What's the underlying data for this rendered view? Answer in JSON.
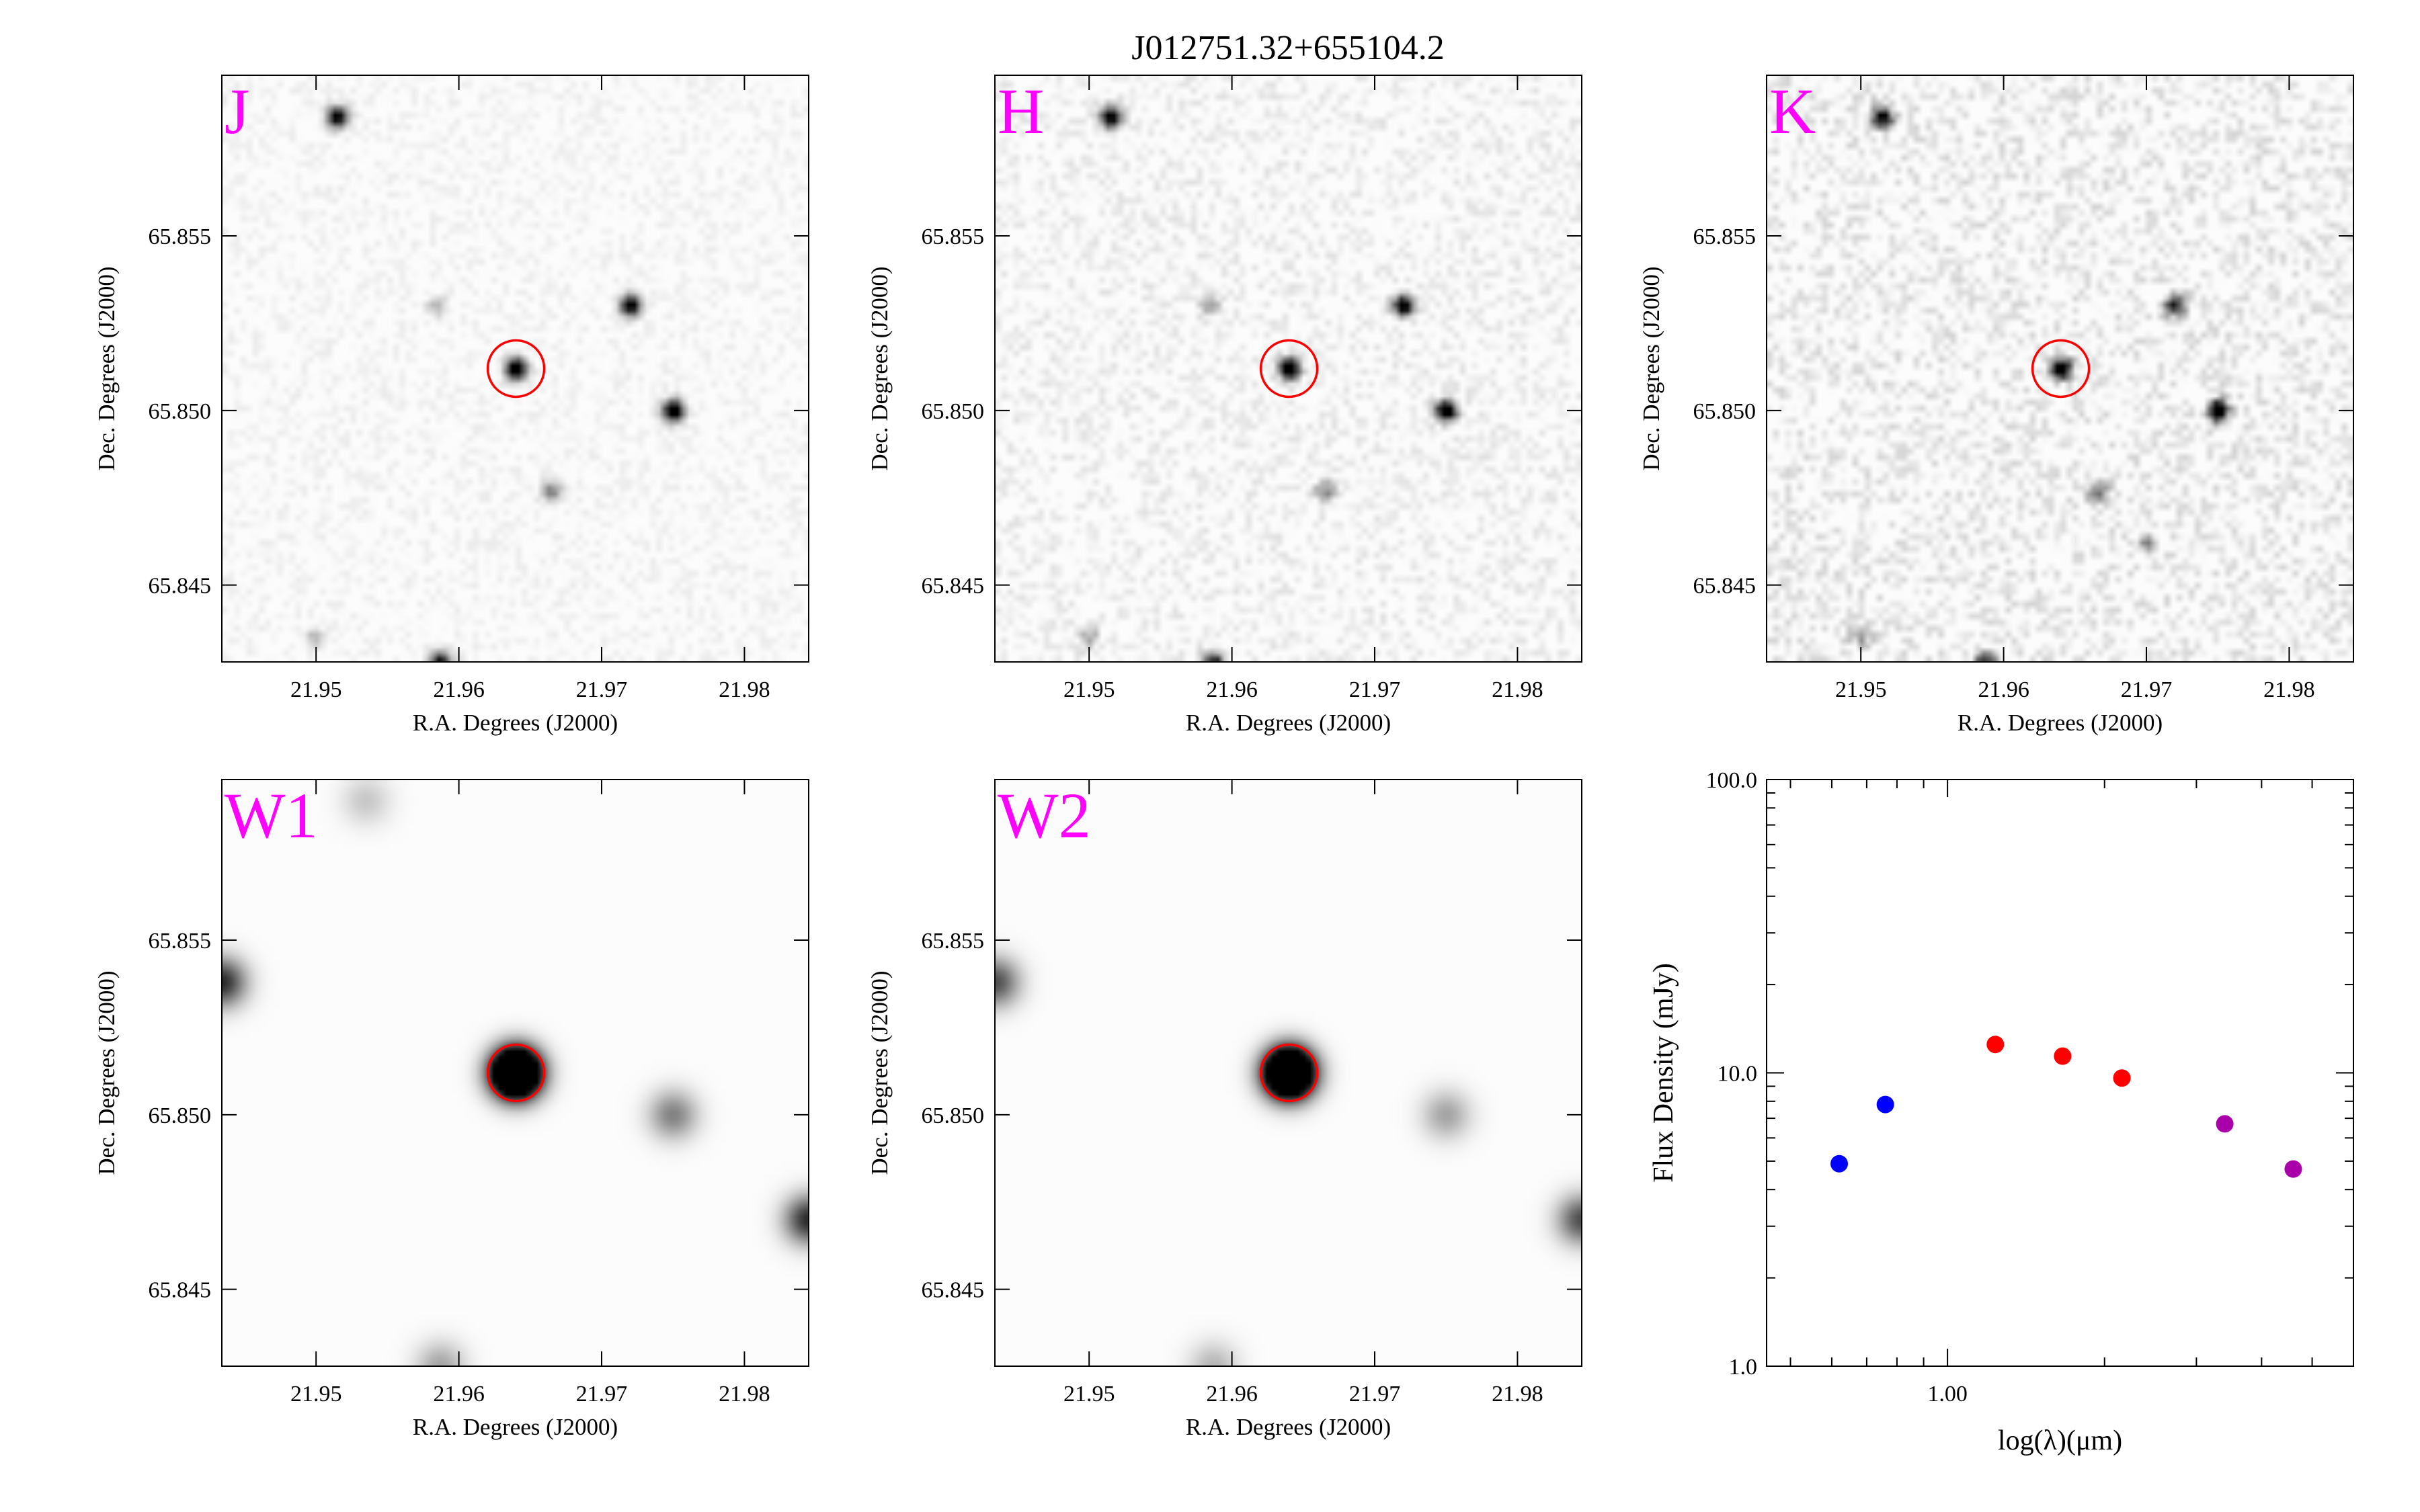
{
  "figure": {
    "title": "J012751.32+655104.2"
  },
  "colors": {
    "band_label": "#ff00ff",
    "aperture": "#ff0000",
    "near_ir_2mass": "#ff0000",
    "optical": "#0000ff",
    "mid_ir_wise": "#aa00aa"
  },
  "image_axes": {
    "xlabel": "R.A. Degrees (J2000)",
    "ylabel": "Dec. Degrees (J2000)",
    "xlim": [
      21.9434,
      21.9845
    ],
    "ylim": [
      65.8428,
      65.8596
    ],
    "xticks": [
      "21.95",
      "21.96",
      "21.97",
      "21.98"
    ],
    "yticks": [
      "65.845",
      "65.850",
      "65.855"
    ]
  },
  "panels": [
    {
      "band": "J",
      "noise": 0.05,
      "psf": 0.0005,
      "sources": [
        {
          "ra": 21.964,
          "dec": 65.8512,
          "peak": 1.0,
          "target": true
        },
        {
          "ra": 21.975,
          "dec": 65.85,
          "peak": 1.0
        },
        {
          "ra": 21.972,
          "dec": 65.853,
          "peak": 0.85
        },
        {
          "ra": 21.9515,
          "dec": 65.8584,
          "peak": 0.85
        },
        {
          "ra": 21.9587,
          "dec": 65.8428,
          "peak": 0.7
        },
        {
          "ra": 21.9665,
          "dec": 65.8477,
          "peak": 0.35
        },
        {
          "ra": 21.9585,
          "dec": 65.853,
          "peak": 0.2
        },
        {
          "ra": 21.95,
          "dec": 65.8435,
          "peak": 0.2
        }
      ]
    },
    {
      "band": "H",
      "noise": 0.08,
      "psf": 0.0005,
      "sources": [
        {
          "ra": 21.964,
          "dec": 65.8512,
          "peak": 1.0,
          "target": true
        },
        {
          "ra": 21.975,
          "dec": 65.85,
          "peak": 1.0
        },
        {
          "ra": 21.972,
          "dec": 65.853,
          "peak": 0.85
        },
        {
          "ra": 21.9515,
          "dec": 65.8584,
          "peak": 0.85
        },
        {
          "ra": 21.9587,
          "dec": 65.8428,
          "peak": 0.7
        },
        {
          "ra": 21.9665,
          "dec": 65.8477,
          "peak": 0.35
        },
        {
          "ra": 21.9585,
          "dec": 65.853,
          "peak": 0.25
        },
        {
          "ra": 21.95,
          "dec": 65.8435,
          "peak": 0.25
        }
      ]
    },
    {
      "band": "K",
      "noise": 0.12,
      "psf": 0.0005,
      "sources": [
        {
          "ra": 21.964,
          "dec": 65.8512,
          "peak": 1.0,
          "target": true
        },
        {
          "ra": 21.975,
          "dec": 65.85,
          "peak": 1.0
        },
        {
          "ra": 21.972,
          "dec": 65.853,
          "peak": 0.7
        },
        {
          "ra": 21.9515,
          "dec": 65.8584,
          "peak": 0.85
        },
        {
          "ra": 21.9587,
          "dec": 65.8428,
          "peak": 0.7
        },
        {
          "ra": 21.9665,
          "dec": 65.8477,
          "peak": 0.4
        },
        {
          "ra": 21.97,
          "dec": 65.8462,
          "peak": 0.3
        },
        {
          "ra": 21.95,
          "dec": 65.8435,
          "peak": 0.25
        }
      ]
    },
    {
      "band": "W1",
      "noise": 0.0,
      "psf": 0.0012,
      "sources": [
        {
          "ra": 21.964,
          "dec": 65.8512,
          "peak": 1.8,
          "target": true
        },
        {
          "ra": 21.975,
          "dec": 65.85,
          "peak": 0.35
        },
        {
          "ra": 21.9434,
          "dec": 65.8538,
          "peak": 0.6
        },
        {
          "ra": 21.9845,
          "dec": 65.847,
          "peak": 0.6
        },
        {
          "ra": 21.9587,
          "dec": 65.8428,
          "peak": 0.25
        },
        {
          "ra": 21.9535,
          "dec": 65.859,
          "peak": 0.15
        }
      ]
    },
    {
      "band": "W2",
      "noise": 0.0,
      "psf": 0.0012,
      "sources": [
        {
          "ra": 21.964,
          "dec": 65.8512,
          "peak": 1.8,
          "target": true
        },
        {
          "ra": 21.975,
          "dec": 65.85,
          "peak": 0.25
        },
        {
          "ra": 21.9434,
          "dec": 65.8538,
          "peak": 0.5
        },
        {
          "ra": 21.9845,
          "dec": 65.847,
          "peak": 0.5
        },
        {
          "ra": 21.9587,
          "dec": 65.8428,
          "peak": 0.2
        }
      ]
    }
  ],
  "chart_data": {
    "type": "scatter",
    "title": "",
    "xlabel": "log(λ)(μm)",
    "ylabel": "Flux Density (mJy)",
    "xscale": "log",
    "yscale": "log",
    "xlim": [
      0.45,
      6.0
    ],
    "ylim": [
      1.0,
      100.0
    ],
    "yticks": [
      "1.0",
      "10.0",
      "100.0"
    ],
    "xticks": [
      "1.00"
    ],
    "grid": false,
    "series": [
      {
        "color": "#0000ff",
        "x": [
          0.62,
          0.76
        ],
        "y": [
          4.9,
          7.8
        ]
      },
      {
        "color": "#ff0000",
        "x": [
          1.235,
          1.662,
          2.159
        ],
        "y": [
          12.5,
          11.4,
          9.6
        ]
      },
      {
        "color": "#aa00aa",
        "x": [
          3.4,
          4.6
        ],
        "y": [
          6.7,
          4.7
        ]
      }
    ]
  }
}
